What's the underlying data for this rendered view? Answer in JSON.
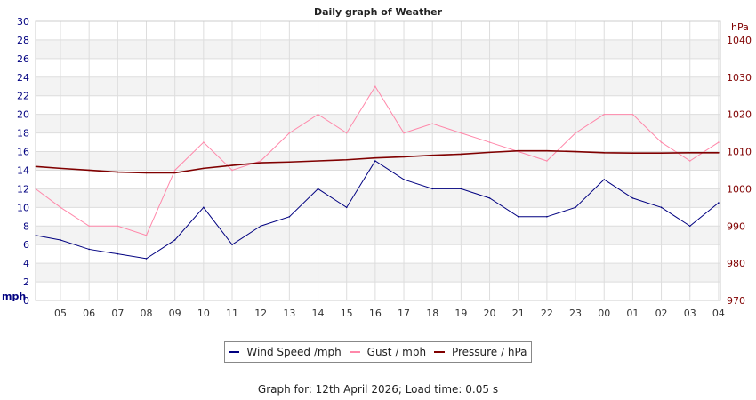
{
  "chart_data": {
    "type": "line",
    "title": "Daily graph of Weather",
    "ylabel_left": "mph",
    "ylabel_right": "hPa",
    "ylim_left": [
      0,
      30
    ],
    "ylim_right": [
      970,
      1045
    ],
    "yticks_left": [
      0,
      2,
      4,
      6,
      8,
      10,
      12,
      14,
      16,
      18,
      20,
      22,
      24,
      26,
      28,
      30
    ],
    "yticks_right": [
      970,
      980,
      990,
      1000,
      1010,
      1020,
      1030,
      1040
    ],
    "x_tick_labels": [
      "05",
      "06",
      "07",
      "08",
      "09",
      "10",
      "11",
      "12",
      "13",
      "14",
      "15",
      "16",
      "17",
      "18",
      "19",
      "20",
      "21",
      "22",
      "23",
      "00",
      "01",
      "02",
      "03",
      "04"
    ],
    "x": [
      "04",
      "05",
      "06",
      "07",
      "08",
      "09",
      "10",
      "11",
      "12",
      "13",
      "14",
      "15",
      "16",
      "17",
      "18",
      "19",
      "20",
      "21",
      "22",
      "23",
      "00",
      "01",
      "02",
      "03",
      "04"
    ],
    "grid": true,
    "legend_placement": "bottom",
    "series": [
      {
        "name": "Wind Speed /mph",
        "axis": "left",
        "color": "#000080",
        "values": [
          7,
          6.5,
          5.5,
          5,
          4.5,
          6.5,
          10,
          6,
          8,
          9,
          12,
          10,
          15,
          13,
          12,
          12,
          11,
          9,
          9,
          10,
          13,
          11,
          10,
          8,
          10.5
        ]
      },
      {
        "name": "Gust / mph",
        "axis": "left",
        "color": "#ff88aa",
        "values": [
          12,
          10,
          8,
          8,
          7,
          14,
          17,
          14,
          15,
          18,
          20,
          18,
          23,
          18,
          19,
          18,
          17,
          16,
          15,
          18,
          20,
          20,
          17,
          15,
          17
        ]
      },
      {
        "name": "Pressure / hPa",
        "axis": "right",
        "color": "#800000",
        "values": [
          1006,
          1005.5,
          1005,
          1004.5,
          1004.3,
          1004.3,
          1005.5,
          1006.3,
          1007,
          1007.2,
          1007.5,
          1007.8,
          1008.3,
          1008.6,
          1009,
          1009.3,
          1009.8,
          1010.2,
          1010.2,
          1010,
          1009.7,
          1009.6,
          1009.6,
          1009.7,
          1009.7
        ]
      }
    ]
  },
  "footer": "Graph for: 12th April 2026; Load time: 0.05 s"
}
